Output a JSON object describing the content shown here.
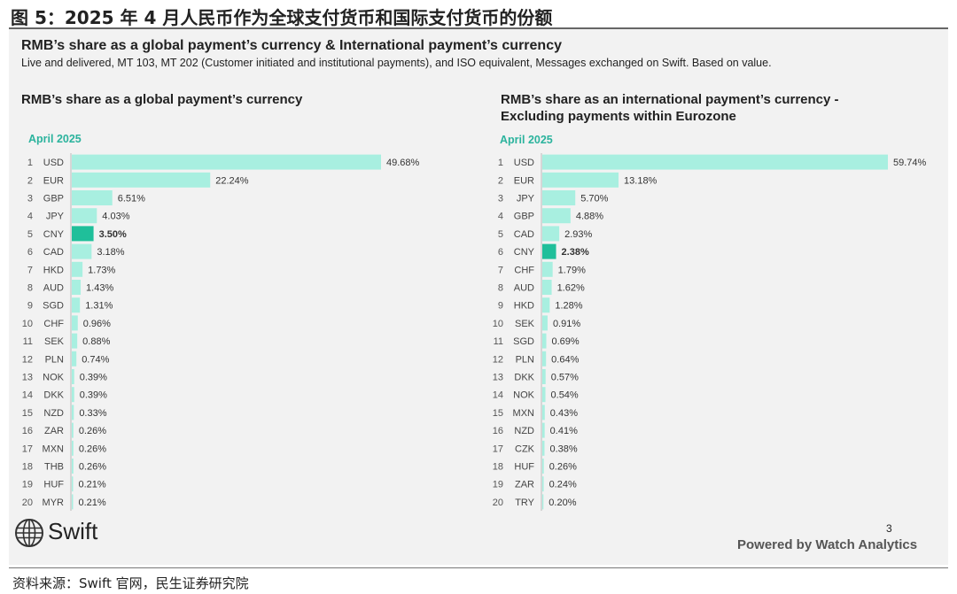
{
  "figure_title": "图 5：2025 年 4 月人民币作为全球支付货币和国际支付货币的份额",
  "main_title": "RMB’s share as a global payment’s currency & International payment’s currency",
  "subtitle": "Live and delivered, MT 103, MT 202 (Customer initiated and institutional payments), and ISO equivalent, Messages exchanged on Swift. Based on value.",
  "logo_text": "Swift",
  "page_number": "3",
  "powered_by": "Powered by Watch Analytics",
  "source": "资料来源：Swift 官网，民生证券研究院",
  "colors": {
    "bar": "#a8efe0",
    "highlight_bar": "#1fbf9a",
    "period": "#2bb39d",
    "panel": "#f2f2f2"
  },
  "chart_data": [
    {
      "type": "bar",
      "orientation": "horizontal",
      "title": "RMB’s share as a global payment’s currency",
      "period": "April 2025",
      "ranks": [
        "1",
        "2",
        "3",
        "4",
        "5",
        "6",
        "7",
        "8",
        "9",
        "10",
        "11",
        "12",
        "13",
        "14",
        "15",
        "16",
        "17",
        "18",
        "19",
        "20"
      ],
      "categories": [
        "USD",
        "EUR",
        "GBP",
        "JPY",
        "CNY",
        "CAD",
        "HKD",
        "AUD",
        "SGD",
        "CHF",
        "SEK",
        "PLN",
        "NOK",
        "DKK",
        "NZD",
        "ZAR",
        "MXN",
        "THB",
        "HUF",
        "MYR"
      ],
      "values": [
        49.68,
        22.24,
        6.51,
        4.03,
        3.5,
        3.18,
        1.73,
        1.43,
        1.31,
        0.96,
        0.88,
        0.74,
        0.39,
        0.39,
        0.33,
        0.26,
        0.26,
        0.26,
        0.21,
        0.21
      ],
      "labels": [
        "49.68%",
        "22.24%",
        "6.51%",
        "4.03%",
        "3.50%",
        "3.18%",
        "1.73%",
        "1.43%",
        "1.31%",
        "0.96%",
        "0.88%",
        "0.74%",
        "0.39%",
        "0.39%",
        "0.33%",
        "0.26%",
        "0.26%",
        "0.26%",
        "0.21%",
        "0.21%"
      ],
      "highlight": "CNY",
      "xlim": [
        0,
        49.68
      ]
    },
    {
      "type": "bar",
      "orientation": "horizontal",
      "title": "RMB’s share as an international payment’s currency - Excluding payments within Eurozone",
      "period": "April 2025",
      "ranks": [
        "1",
        "2",
        "3",
        "4",
        "5",
        "6",
        "7",
        "8",
        "9",
        "10",
        "11",
        "12",
        "13",
        "14",
        "15",
        "16",
        "17",
        "18",
        "19",
        "20"
      ],
      "categories": [
        "USD",
        "EUR",
        "JPY",
        "GBP",
        "CAD",
        "CNY",
        "CHF",
        "AUD",
        "HKD",
        "SEK",
        "SGD",
        "PLN",
        "DKK",
        "NOK",
        "MXN",
        "NZD",
        "CZK",
        "HUF",
        "ZAR",
        "TRY"
      ],
      "values": [
        59.74,
        13.18,
        5.7,
        4.88,
        2.93,
        2.38,
        1.79,
        1.62,
        1.28,
        0.91,
        0.69,
        0.64,
        0.57,
        0.54,
        0.43,
        0.41,
        0.38,
        0.26,
        0.24,
        0.2
      ],
      "labels": [
        "59.74%",
        "13.18%",
        "5.70%",
        "4.88%",
        "2.93%",
        "2.38%",
        "1.79%",
        "1.62%",
        "1.28%",
        "0.91%",
        "0.69%",
        "0.64%",
        "0.57%",
        "0.54%",
        "0.43%",
        "0.41%",
        "0.38%",
        "0.26%",
        "0.24%",
        "0.20%"
      ],
      "highlight": "CNY",
      "xlim": [
        0,
        59.74
      ]
    }
  ]
}
